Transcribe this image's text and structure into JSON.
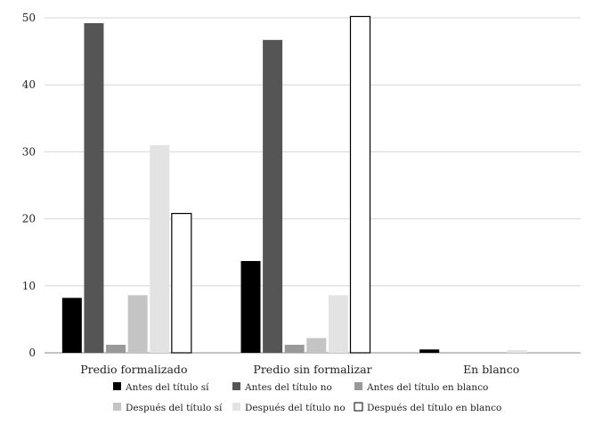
{
  "chart_data": {
    "type": "bar",
    "categories": [
      "Predio formalizado",
      "Predio sin formalizar",
      "En blanco"
    ],
    "series": [
      {
        "name": "Antes del título sí",
        "color": "#000000",
        "values": [
          8.2,
          13.7,
          0.5
        ]
      },
      {
        "name": "Antes del título no",
        "color": "#555555",
        "values": [
          49.2,
          46.7,
          0
        ]
      },
      {
        "name": "Antes del título en blanco",
        "color": "#999999",
        "values": [
          1.2,
          1.2,
          0
        ]
      },
      {
        "name": "Después del título sí",
        "color": "#c4c4c4",
        "values": [
          8.6,
          2.2,
          0
        ]
      },
      {
        "name": "Después del título no",
        "color": "#e3e3e3",
        "values": [
          31.0,
          8.6,
          0.4
        ]
      },
      {
        "name": "Después del título en blanco",
        "color": "#ffffff",
        "outline": "#000000",
        "values": [
          20.8,
          50.2,
          0
        ]
      }
    ],
    "ylim": [
      0,
      50
    ],
    "yticks": [
      0,
      10,
      20,
      30,
      40,
      50
    ],
    "grid": true,
    "legend_position": "bottom"
  }
}
